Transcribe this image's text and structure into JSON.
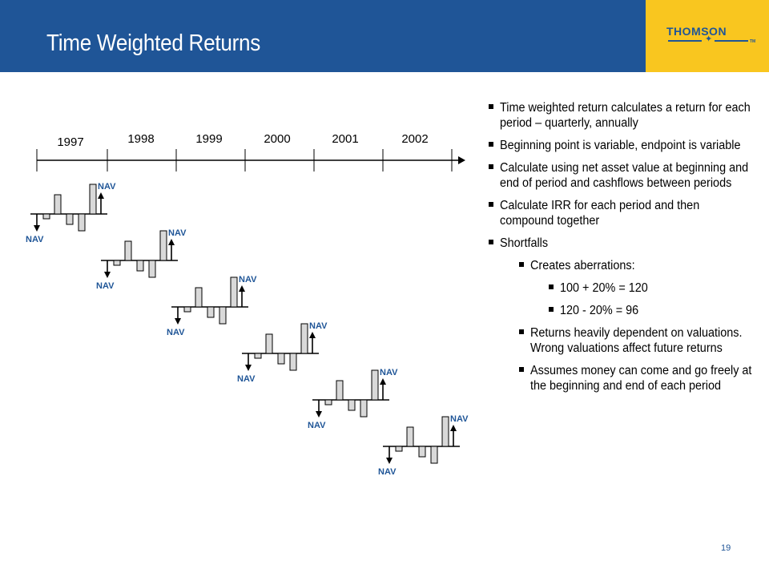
{
  "header": {
    "title": "Time Weighted Returns",
    "brand": "THOMSON",
    "trademark": "TM",
    "colors": {
      "header_bg": "#1f5597",
      "logo_bg": "#f9c61f"
    }
  },
  "timeline": {
    "years": [
      "1997",
      "1998",
      "1999",
      "2000",
      "2001",
      "2002"
    ],
    "nav_label": "NAV",
    "period_count": 6
  },
  "bullets": [
    {
      "level": 1,
      "text": "Time weighted return calculates a return for each period – quarterly, annually"
    },
    {
      "level": 1,
      "text": "Beginning point is variable, endpoint is variable"
    },
    {
      "level": 1,
      "text": "Calculate using net asset value at beginning and end of period and cashflows between periods"
    },
    {
      "level": 1,
      "text": "Calculate IRR for each period and then compound together"
    },
    {
      "level": 1,
      "text": "Shortfalls"
    },
    {
      "level": 2,
      "text": "Creates aberrations:"
    },
    {
      "level": 3,
      "text": "100 + 20% = 120"
    },
    {
      "level": 3,
      "text": "120 - 20% = 96"
    },
    {
      "level": 2,
      "text": "Returns heavily dependent on valuations. Wrong valuations affect future returns"
    },
    {
      "level": 2,
      "text": "Assumes money can come and go freely at the beginning and end of each period"
    }
  ],
  "footer": {
    "page_number": "19"
  }
}
